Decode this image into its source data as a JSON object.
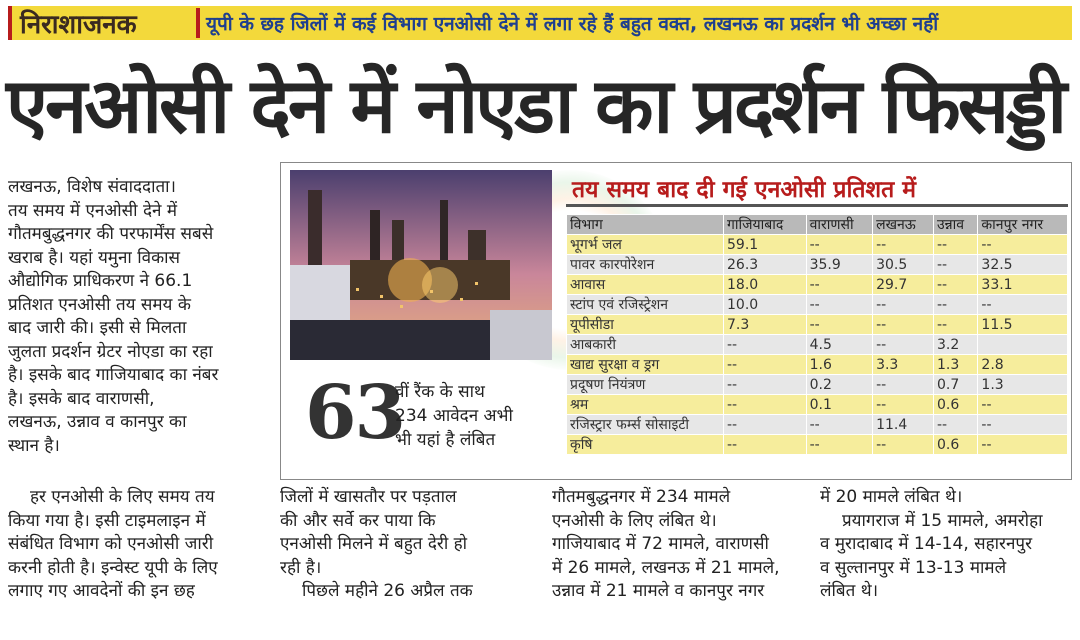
{
  "header": {
    "kicker": "निराशाजनक",
    "subhead": "यूपी के छह जिलों में कई विभाग एनओसी देने में लगा रहे हैं बहुत वक्त, लखनऊ का प्रदर्शन भी अच्छा नहीं"
  },
  "headline": "एनओसी देने में नोएडा का प्रदर्शन फिसड्डी",
  "columns": {
    "col1_lines": [
      "लखनऊ, विशेष संवाददाता।",
      "तय समय में एनओसी देने में",
      "गौतमबुद्धनगर की परफार्मेंस सबसे",
      "खराब है। यहां यमुना विकास",
      "औद्योगिक प्राधिकरण ने 66.1",
      "प्रतिशत एनओसी तय समय के",
      "बाद जारी की। इसी से मिलता",
      "जुलता प्रदर्शन ग्रेटर नोएडा का रहा",
      "है। इसके बाद गाजियाबाद का नंबर",
      "है। इसके बाद वाराणसी,",
      "लखनऊ, उन्नाव व कानपुर का",
      "स्थान है।"
    ],
    "col1b_lines": [
      "हर एनओसी के लिए समय तय",
      "किया गया है। इसी टाइमलाइन में",
      "संबंधित विभाग को एनओसी जारी",
      "करनी होती है। इन्वेस्ट यूपी के लिए",
      "लगाए गए आवदेनों की इन छह"
    ],
    "col2_lines": [
      "जिलों में खासतौर पर पड़ताल",
      "की और सर्वे कर पाया कि",
      "एनओसी मिलने में बहुत देरी हो",
      "रही है।",
      "पिछले महीने 26 अप्रैल तक"
    ],
    "col3_lines": [
      "गौतमबुद्धनगर में 234 मामले",
      "एनओसी के लिए लंबित थे।",
      "गाजियाबाद में 72 मामले, वाराणसी",
      "में 26 मामले, लखनऊ में 21 मामले,",
      "उन्नाव में 21 मामले व कानपुर नगर"
    ],
    "col4_lines": [
      "में 20 मामले लंबित थे।",
      "प्रयागराज में 15 मामले, अमरोहा",
      "व मुरादाबाद में 14-14, सहारनपुर",
      "व सुल्तानपुर में 13-13 मामले",
      "लंबित थे।"
    ]
  },
  "callout": {
    "number": "63",
    "text_lines": [
      "वीं रैंक के साथ",
      "234 आवेदन अभी",
      "भी यहां है लंबित"
    ]
  },
  "table": {
    "title": "तय समय बाद दी गई एनओसी प्रतिशत में",
    "headers": [
      "विभाग",
      "गाजियाबाद",
      "वाराणसी",
      "लखनऊ",
      "उन्नाव",
      "कानपुर नगर"
    ],
    "rows": [
      [
        "भूगर्भ जल",
        "59.1",
        "--",
        "--",
        "--",
        "--"
      ],
      [
        "पावर कारपोरेशन",
        "26.3",
        "35.9",
        "30.5",
        "--",
        "32.5"
      ],
      [
        "आवास",
        "18.0",
        "--",
        "29.7",
        "--",
        "33.1"
      ],
      [
        "स्टांप एवं रजिस्ट्रेशन",
        "10.0",
        "--",
        "--",
        "--",
        "--"
      ],
      [
        "यूपीसीडा",
        "7.3",
        "--",
        "--",
        "--",
        "11.5"
      ],
      [
        "आबकारी",
        "--",
        "4.5",
        "--",
        "3.2",
        ""
      ],
      [
        "खाद्य सुरक्षा व ड्रग",
        "--",
        "1.6",
        "3.3",
        "1.3",
        "2.8"
      ],
      [
        "प्रदूषण नियंत्रण",
        "--",
        "0.2",
        "--",
        "0.7",
        "1.3"
      ],
      [
        "श्रम",
        "--",
        "0.1",
        "--",
        "0.6",
        "--"
      ],
      [
        "रजिस्ट्रार फर्म्स सोसाइटी",
        "--",
        "--",
        "11.4",
        "--",
        "--"
      ],
      [
        "कृषि",
        "--",
        "--",
        "--",
        "0.6",
        "--"
      ]
    ]
  },
  "colors": {
    "kicker_bg": "#f3d93b",
    "accent_red": "#b71c1c",
    "subhead_blue": "#1e3f8f",
    "row_yellow": "#f6ed9c",
    "row_gray": "#e7e7e7"
  }
}
